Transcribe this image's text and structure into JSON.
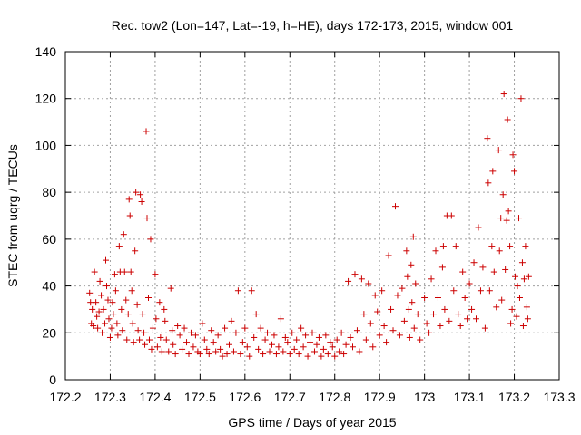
{
  "chart_data": {
    "type": "scatter",
    "title": "Rec. tow2 (Lon=147, Lat=-19, h=HE), days 172-173, 2015, window 001",
    "xlabel": "GPS time / Days of year 2015",
    "ylabel": "STEC from uqrg / TECUs",
    "xlim": [
      172.2,
      173.3
    ],
    "ylim": [
      0,
      140
    ],
    "xticks": [
      "172.2",
      "172.3",
      "172.4",
      "172.5",
      "172.6",
      "172.7",
      "172.8",
      "172.9",
      "173",
      "173.1",
      "173.2",
      "173.3"
    ],
    "yticks": [
      "0",
      "20",
      "40",
      "60",
      "80",
      "100",
      "120",
      "140"
    ],
    "grid": true,
    "marker": "plus",
    "color": "#cc0000",
    "points": [
      [
        172.254,
        37
      ],
      [
        172.256,
        33
      ],
      [
        172.258,
        24
      ],
      [
        172.26,
        30
      ],
      [
        172.262,
        23
      ],
      [
        172.265,
        46
      ],
      [
        172.268,
        33
      ],
      [
        172.27,
        27
      ],
      [
        172.272,
        22
      ],
      [
        172.275,
        29
      ],
      [
        172.277,
        42
      ],
      [
        172.28,
        36
      ],
      [
        172.282,
        20
      ],
      [
        172.285,
        30
      ],
      [
        172.288,
        24
      ],
      [
        172.29,
        51
      ],
      [
        172.292,
        40
      ],
      [
        172.295,
        34
      ],
      [
        172.297,
        26
      ],
      [
        172.3,
        18
      ],
      [
        172.303,
        22
      ],
      [
        172.305,
        33
      ],
      [
        172.307,
        28
      ],
      [
        172.31,
        45
      ],
      [
        172.312,
        38
      ],
      [
        172.315,
        24
      ],
      [
        172.317,
        19
      ],
      [
        172.32,
        57
      ],
      [
        172.322,
        46
      ],
      [
        172.325,
        30
      ],
      [
        172.327,
        21
      ],
      [
        172.33,
        62
      ],
      [
        172.332,
        46
      ],
      [
        172.335,
        34
      ],
      [
        172.337,
        17
      ],
      [
        172.34,
        28
      ],
      [
        172.342,
        77
      ],
      [
        172.344,
        70
      ],
      [
        172.346,
        46
      ],
      [
        172.348,
        38
      ],
      [
        172.35,
        24
      ],
      [
        172.352,
        16
      ],
      [
        172.355,
        55
      ],
      [
        172.357,
        80
      ],
      [
        172.36,
        32
      ],
      [
        172.362,
        21
      ],
      [
        172.365,
        17
      ],
      [
        172.367,
        79
      ],
      [
        172.37,
        76
      ],
      [
        172.372,
        28
      ],
      [
        172.375,
        20
      ],
      [
        172.377,
        15
      ],
      [
        172.38,
        106
      ],
      [
        172.382,
        69
      ],
      [
        172.385,
        35
      ],
      [
        172.387,
        17
      ],
      [
        172.39,
        60
      ],
      [
        172.392,
        13
      ],
      [
        172.395,
        22
      ],
      [
        172.4,
        45
      ],
      [
        172.402,
        26
      ],
      [
        172.405,
        14
      ],
      [
        172.41,
        33
      ],
      [
        172.412,
        18
      ],
      [
        172.415,
        12
      ],
      [
        172.42,
        30
      ],
      [
        172.422,
        25
      ],
      [
        172.425,
        17
      ],
      [
        172.43,
        12
      ],
      [
        172.435,
        39
      ],
      [
        172.438,
        21
      ],
      [
        172.44,
        15
      ],
      [
        172.445,
        11
      ],
      [
        172.45,
        23
      ],
      [
        172.455,
        19
      ],
      [
        172.46,
        13
      ],
      [
        172.465,
        22
      ],
      [
        172.47,
        16
      ],
      [
        172.475,
        11
      ],
      [
        172.48,
        20
      ],
      [
        172.485,
        14
      ],
      [
        172.49,
        19
      ],
      [
        172.495,
        12
      ],
      [
        172.5,
        11
      ],
      [
        172.505,
        24
      ],
      [
        172.51,
        17
      ],
      [
        172.515,
        13
      ],
      [
        172.52,
        11
      ],
      [
        172.525,
        21
      ],
      [
        172.53,
        16
      ],
      [
        172.535,
        12
      ],
      [
        172.54,
        19
      ],
      [
        172.545,
        13
      ],
      [
        172.55,
        10
      ],
      [
        172.555,
        22
      ],
      [
        172.56,
        11
      ],
      [
        172.565,
        15
      ],
      [
        172.57,
        25
      ],
      [
        172.575,
        12
      ],
      [
        172.58,
        20
      ],
      [
        172.585,
        38
      ],
      [
        172.59,
        11
      ],
      [
        172.595,
        16
      ],
      [
        172.6,
        22
      ],
      [
        172.605,
        14
      ],
      [
        172.61,
        10
      ],
      [
        172.615,
        38
      ],
      [
        172.62,
        18
      ],
      [
        172.625,
        28
      ],
      [
        172.63,
        13
      ],
      [
        172.635,
        22
      ],
      [
        172.64,
        11
      ],
      [
        172.645,
        17
      ],
      [
        172.65,
        20
      ],
      [
        172.655,
        12
      ],
      [
        172.66,
        15
      ],
      [
        172.665,
        19
      ],
      [
        172.67,
        11
      ],
      [
        172.675,
        14
      ],
      [
        172.68,
        26
      ],
      [
        172.685,
        12
      ],
      [
        172.69,
        18
      ],
      [
        172.695,
        16
      ],
      [
        172.7,
        11
      ],
      [
        172.705,
        20
      ],
      [
        172.71,
        13
      ],
      [
        172.715,
        17
      ],
      [
        172.72,
        11
      ],
      [
        172.725,
        22
      ],
      [
        172.73,
        14
      ],
      [
        172.735,
        19
      ],
      [
        172.74,
        10
      ],
      [
        172.745,
        16
      ],
      [
        172.75,
        20
      ],
      [
        172.755,
        12
      ],
      [
        172.76,
        15
      ],
      [
        172.765,
        18
      ],
      [
        172.77,
        10
      ],
      [
        172.775,
        13
      ],
      [
        172.78,
        19
      ],
      [
        172.785,
        11
      ],
      [
        172.79,
        16
      ],
      [
        172.795,
        14
      ],
      [
        172.8,
        10
      ],
      [
        172.805,
        17
      ],
      [
        172.81,
        12
      ],
      [
        172.815,
        20
      ],
      [
        172.82,
        11
      ],
      [
        172.825,
        15
      ],
      [
        172.83,
        42
      ],
      [
        172.835,
        18
      ],
      [
        172.84,
        14
      ],
      [
        172.845,
        45
      ],
      [
        172.85,
        21
      ],
      [
        172.855,
        12
      ],
      [
        172.86,
        43
      ],
      [
        172.865,
        28
      ],
      [
        172.87,
        17
      ],
      [
        172.875,
        41
      ],
      [
        172.88,
        24
      ],
      [
        172.885,
        14
      ],
      [
        172.89,
        36
      ],
      [
        172.895,
        29
      ],
      [
        172.9,
        19
      ],
      [
        172.905,
        38
      ],
      [
        172.91,
        23
      ],
      [
        172.915,
        16
      ],
      [
        172.92,
        53
      ],
      [
        172.925,
        30
      ],
      [
        172.93,
        21
      ],
      [
        172.935,
        74
      ],
      [
        172.94,
        36
      ],
      [
        172.945,
        19
      ],
      [
        172.95,
        39
      ],
      [
        172.955,
        25
      ],
      [
        172.96,
        55
      ],
      [
        172.962,
        44
      ],
      [
        172.965,
        30
      ],
      [
        172.967,
        18
      ],
      [
        172.97,
        49
      ],
      [
        172.972,
        33
      ],
      [
        172.975,
        61
      ],
      [
        172.977,
        22
      ],
      [
        172.98,
        41
      ],
      [
        172.985,
        28
      ],
      [
        172.99,
        17
      ],
      [
        173.0,
        35
      ],
      [
        173.005,
        24
      ],
      [
        173.01,
        20
      ],
      [
        173.015,
        43
      ],
      [
        173.02,
        28
      ],
      [
        173.025,
        55
      ],
      [
        173.03,
        35
      ],
      [
        173.035,
        23
      ],
      [
        173.04,
        48
      ],
      [
        173.042,
        57
      ],
      [
        173.045,
        30
      ],
      [
        173.05,
        70
      ],
      [
        173.055,
        25
      ],
      [
        173.06,
        70
      ],
      [
        173.065,
        38
      ],
      [
        173.07,
        57
      ],
      [
        173.075,
        28
      ],
      [
        173.08,
        23
      ],
      [
        173.085,
        46
      ],
      [
        173.09,
        35
      ],
      [
        173.095,
        26
      ],
      [
        173.1,
        41
      ],
      [
        173.105,
        30
      ],
      [
        173.11,
        50
      ],
      [
        173.115,
        26
      ],
      [
        173.12,
        65
      ],
      [
        173.125,
        38
      ],
      [
        173.13,
        48
      ],
      [
        173.135,
        22
      ],
      [
        173.14,
        103
      ],
      [
        173.142,
        84
      ],
      [
        173.145,
        38
      ],
      [
        173.15,
        57
      ],
      [
        173.152,
        89
      ],
      [
        173.155,
        46
      ],
      [
        173.16,
        31
      ],
      [
        173.165,
        98
      ],
      [
        173.167,
        55
      ],
      [
        173.17,
        69
      ],
      [
        173.172,
        34
      ],
      [
        173.175,
        79
      ],
      [
        173.177,
        122
      ],
      [
        173.18,
        47
      ],
      [
        173.183,
        68
      ],
      [
        173.185,
        111
      ],
      [
        173.187,
        72
      ],
      [
        173.19,
        57
      ],
      [
        173.192,
        24
      ],
      [
        173.195,
        30
      ],
      [
        173.197,
        96
      ],
      [
        173.2,
        89
      ],
      [
        173.202,
        44
      ],
      [
        173.205,
        27
      ],
      [
        173.207,
        40
      ],
      [
        173.21,
        69
      ],
      [
        173.212,
        35
      ],
      [
        173.215,
        120
      ],
      [
        173.218,
        50
      ],
      [
        173.22,
        23
      ],
      [
        173.222,
        43
      ],
      [
        173.225,
        57
      ],
      [
        173.228,
        31
      ],
      [
        173.23,
        26
      ],
      [
        173.232,
        44
      ]
    ]
  }
}
